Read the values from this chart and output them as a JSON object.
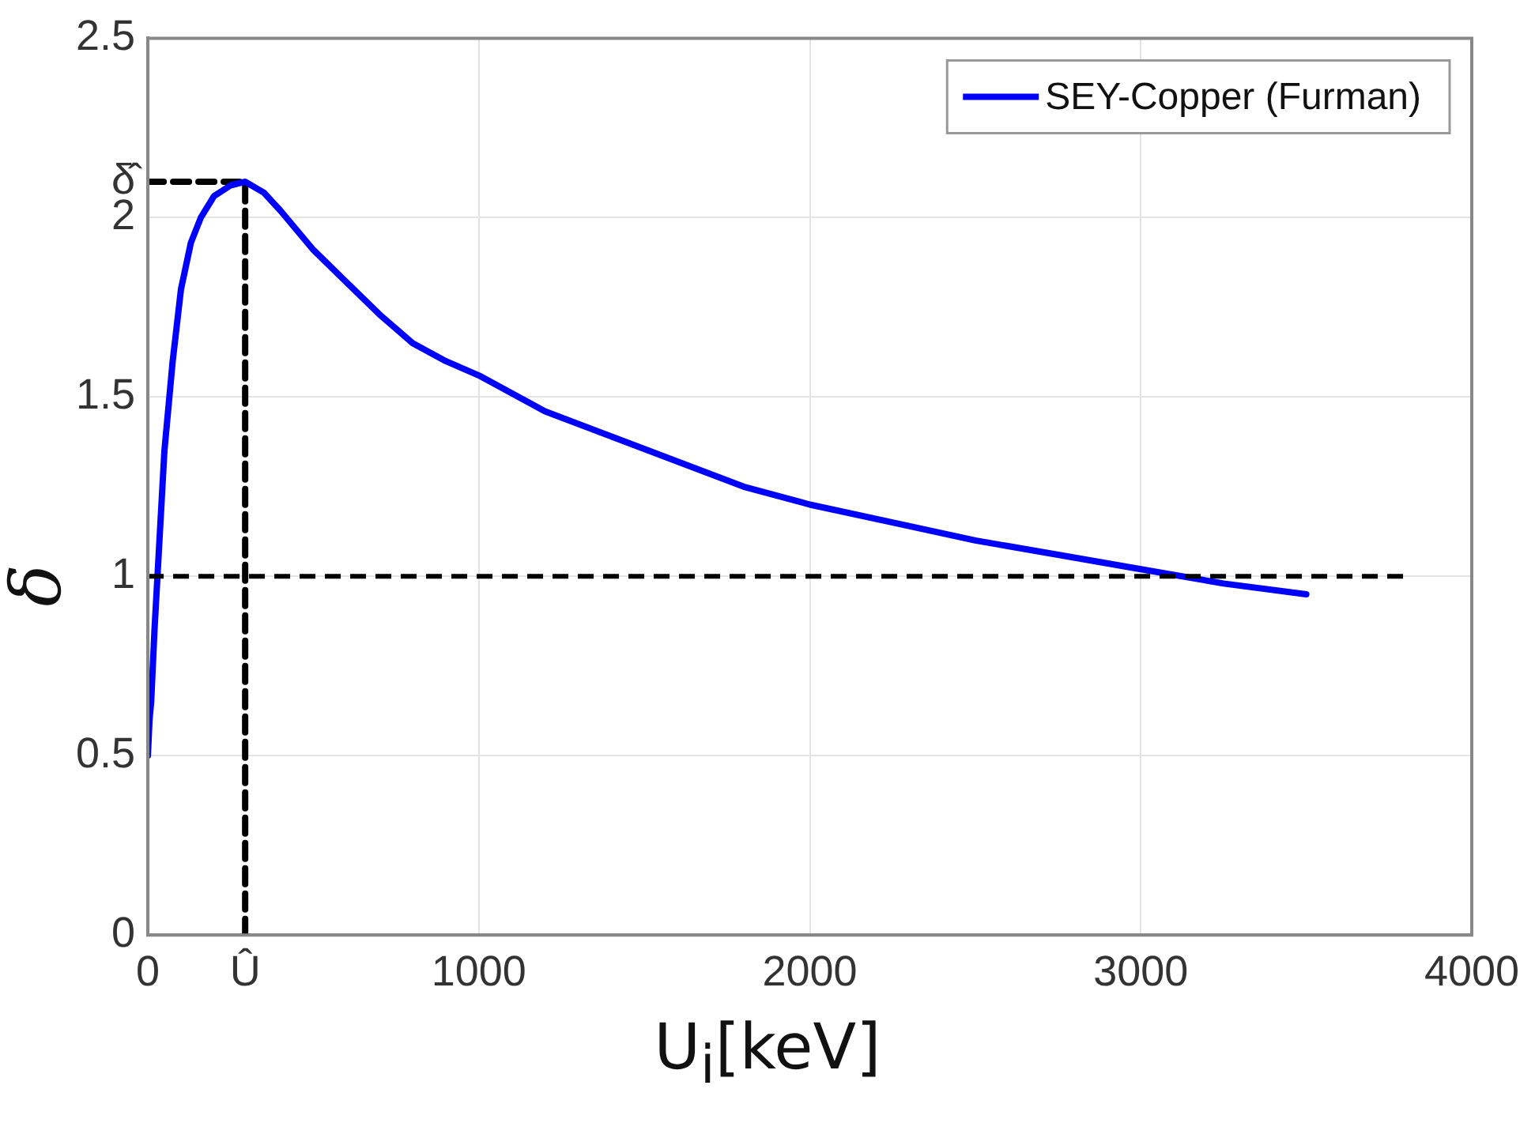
{
  "chart_data": {
    "type": "line",
    "xlabel": "U$_{i}$[keV]",
    "ylabel": "δ",
    "xlim": [
      0,
      4000
    ],
    "ylim": [
      0,
      2.5
    ],
    "xticks": [
      0,
      {
        "value": 294,
        "label": "Û"
      },
      1000,
      2000,
      3000,
      4000
    ],
    "yticks": [
      0,
      0.5,
      1,
      1.5,
      {
        "value": 2.1,
        "label": "δ̂"
      },
      2,
      2.5
    ],
    "grid": true,
    "legend": "top right",
    "marker": "none",
    "series": [
      {
        "name": "SEY-Copper (Furman)",
        "color": "#0000ff",
        "line_style": "solid",
        "x": [
          0,
          5,
          10,
          20,
          35,
          50,
          75,
          100,
          130,
          160,
          200,
          250,
          294,
          350,
          400,
          500,
          600,
          700,
          800,
          900,
          1000,
          1200,
          1400,
          1600,
          1800,
          2000,
          2250,
          2500,
          2750,
          3000,
          3250,
          3500
        ],
        "values": [
          0.5,
          0.6,
          0.65,
          0.85,
          1.1,
          1.35,
          1.6,
          1.8,
          1.93,
          2.0,
          2.06,
          2.09,
          2.1,
          2.07,
          2.02,
          1.91,
          1.82,
          1.73,
          1.65,
          1.6,
          1.56,
          1.46,
          1.39,
          1.32,
          1.25,
          1.2,
          1.15,
          1.1,
          1.06,
          1.02,
          0.98,
          0.95
        ]
      },
      {
        "color": "#000000",
        "line_style": "dashed",
        "x": [
          0,
          294,
          294
        ],
        "values": [
          2.1,
          2.1,
          0
        ]
      }
    ],
    "ref_lines": [
      {
        "axis": "y",
        "value": 1,
        "color": "#000000",
        "line_style": "dashed"
      }
    ]
  }
}
